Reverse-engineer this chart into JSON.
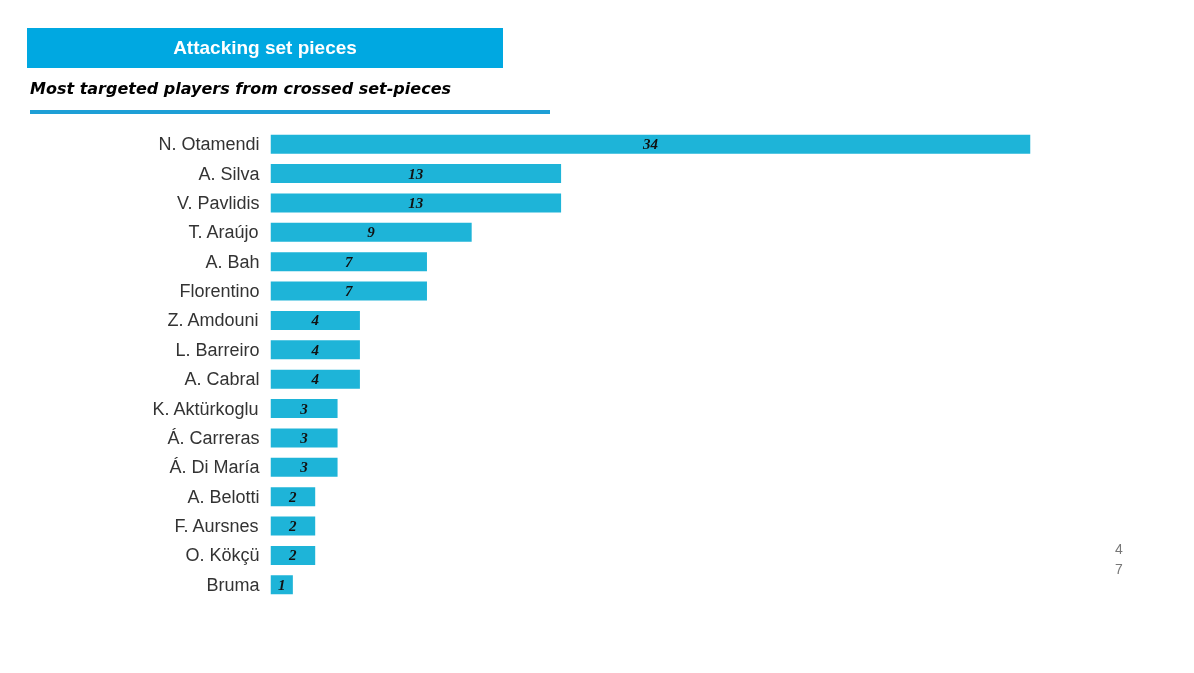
{
  "chart_data": {
    "type": "bar",
    "orientation": "horizontal",
    "title": "Attacking set pieces",
    "subtitle": "Most targeted players from crossed set-pieces",
    "categories": [
      "N. Otamendi",
      "A. Silva",
      "V. Pavlidis",
      "T. Araújo",
      "A. Bah",
      "Florentino",
      "Z. Amdouni",
      "L. Barreiro",
      "A. Cabral",
      "K. Aktürkoglu",
      "Á. Carreras",
      "Á. Di María",
      "A. Belotti",
      "F. Aursnes",
      "O. Kökçü",
      "Bruma"
    ],
    "values": [
      34,
      13,
      13,
      9,
      7,
      7,
      4,
      4,
      4,
      3,
      3,
      3,
      2,
      2,
      2,
      1
    ],
    "color": "#1eb4d8",
    "data_labels": true,
    "tick_labels": "y",
    "annotations": [
      "47"
    ]
  }
}
